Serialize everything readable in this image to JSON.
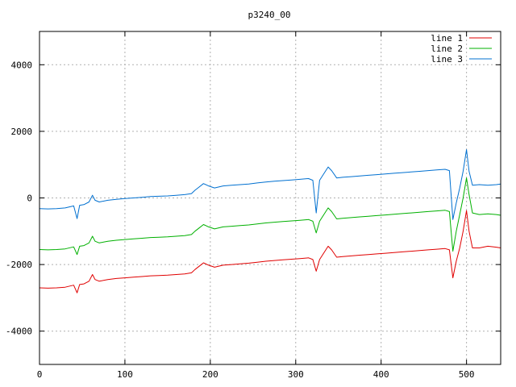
{
  "chart_data": {
    "type": "line",
    "title": "p3240_00",
    "xlabel": "",
    "ylabel": "",
    "xlim": [
      0,
      540
    ],
    "ylim": [
      -5000,
      5000
    ],
    "xticks": [
      0,
      100,
      200,
      300,
      400,
      500
    ],
    "yticks": [
      -4000,
      -2000,
      0,
      2000,
      4000
    ],
    "grid": true,
    "legend_position": "top-right",
    "series": [
      {
        "name": "line 1",
        "color": "#e00000",
        "points": [
          [
            0,
            -2700
          ],
          [
            10,
            -2710
          ],
          [
            20,
            -2700
          ],
          [
            30,
            -2680
          ],
          [
            40,
            -2620
          ],
          [
            44,
            -2850
          ],
          [
            47,
            -2600
          ],
          [
            52,
            -2580
          ],
          [
            58,
            -2500
          ],
          [
            62,
            -2300
          ],
          [
            65,
            -2450
          ],
          [
            70,
            -2500
          ],
          [
            80,
            -2450
          ],
          [
            90,
            -2420
          ],
          [
            100,
            -2400
          ],
          [
            110,
            -2380
          ],
          [
            120,
            -2360
          ],
          [
            130,
            -2340
          ],
          [
            140,
            -2330
          ],
          [
            150,
            -2320
          ],
          [
            160,
            -2300
          ],
          [
            170,
            -2280
          ],
          [
            178,
            -2250
          ],
          [
            182,
            -2150
          ],
          [
            187,
            -2050
          ],
          [
            192,
            -1950
          ],
          [
            198,
            -2020
          ],
          [
            205,
            -2080
          ],
          [
            215,
            -2020
          ],
          [
            225,
            -2000
          ],
          [
            235,
            -1980
          ],
          [
            245,
            -1960
          ],
          [
            255,
            -1930
          ],
          [
            265,
            -1900
          ],
          [
            275,
            -1880
          ],
          [
            285,
            -1860
          ],
          [
            295,
            -1840
          ],
          [
            305,
            -1820
          ],
          [
            315,
            -1800
          ],
          [
            320,
            -1850
          ],
          [
            324,
            -2200
          ],
          [
            328,
            -1850
          ],
          [
            333,
            -1650
          ],
          [
            338,
            -1450
          ],
          [
            342,
            -1560
          ],
          [
            348,
            -1780
          ],
          [
            355,
            -1760
          ],
          [
            365,
            -1740
          ],
          [
            375,
            -1720
          ],
          [
            385,
            -1700
          ],
          [
            395,
            -1680
          ],
          [
            405,
            -1660
          ],
          [
            415,
            -1640
          ],
          [
            425,
            -1620
          ],
          [
            435,
            -1600
          ],
          [
            445,
            -1580
          ],
          [
            455,
            -1560
          ],
          [
            465,
            -1540
          ],
          [
            475,
            -1520
          ],
          [
            480,
            -1560
          ],
          [
            484,
            -2400
          ],
          [
            488,
            -1900
          ],
          [
            492,
            -1500
          ],
          [
            496,
            -1000
          ],
          [
            500,
            -380
          ],
          [
            503,
            -1000
          ],
          [
            507,
            -1500
          ],
          [
            515,
            -1500
          ],
          [
            525,
            -1450
          ],
          [
            535,
            -1480
          ],
          [
            540,
            -1500
          ]
        ]
      },
      {
        "name": "line 2",
        "color": "#00b000",
        "points": [
          [
            0,
            -1550
          ],
          [
            10,
            -1560
          ],
          [
            20,
            -1550
          ],
          [
            30,
            -1530
          ],
          [
            40,
            -1470
          ],
          [
            44,
            -1700
          ],
          [
            47,
            -1450
          ],
          [
            52,
            -1430
          ],
          [
            58,
            -1350
          ],
          [
            62,
            -1150
          ],
          [
            65,
            -1300
          ],
          [
            70,
            -1350
          ],
          [
            80,
            -1300
          ],
          [
            90,
            -1270
          ],
          [
            100,
            -1250
          ],
          [
            110,
            -1230
          ],
          [
            120,
            -1210
          ],
          [
            130,
            -1190
          ],
          [
            140,
            -1180
          ],
          [
            150,
            -1170
          ],
          [
            160,
            -1150
          ],
          [
            170,
            -1130
          ],
          [
            178,
            -1100
          ],
          [
            182,
            -1000
          ],
          [
            187,
            -900
          ],
          [
            192,
            -800
          ],
          [
            198,
            -870
          ],
          [
            205,
            -930
          ],
          [
            215,
            -870
          ],
          [
            225,
            -850
          ],
          [
            235,
            -830
          ],
          [
            245,
            -810
          ],
          [
            255,
            -780
          ],
          [
            265,
            -750
          ],
          [
            275,
            -730
          ],
          [
            285,
            -710
          ],
          [
            295,
            -690
          ],
          [
            305,
            -670
          ],
          [
            315,
            -650
          ],
          [
            320,
            -700
          ],
          [
            324,
            -1050
          ],
          [
            328,
            -700
          ],
          [
            333,
            -500
          ],
          [
            338,
            -300
          ],
          [
            342,
            -410
          ],
          [
            348,
            -630
          ],
          [
            355,
            -610
          ],
          [
            365,
            -590
          ],
          [
            375,
            -570
          ],
          [
            385,
            -550
          ],
          [
            395,
            -530
          ],
          [
            405,
            -510
          ],
          [
            415,
            -490
          ],
          [
            425,
            -470
          ],
          [
            435,
            -450
          ],
          [
            445,
            -430
          ],
          [
            455,
            -410
          ],
          [
            465,
            -390
          ],
          [
            475,
            -370
          ],
          [
            480,
            -410
          ],
          [
            484,
            -1600
          ],
          [
            488,
            -1000
          ],
          [
            492,
            -500
          ],
          [
            496,
            0
          ],
          [
            500,
            600
          ],
          [
            503,
            100
          ],
          [
            507,
            -450
          ],
          [
            515,
            -500
          ],
          [
            525,
            -480
          ],
          [
            535,
            -500
          ],
          [
            540,
            -520
          ]
        ]
      },
      {
        "name": "line 3",
        "color": "#0070d0",
        "points": [
          [
            0,
            -320
          ],
          [
            10,
            -330
          ],
          [
            20,
            -320
          ],
          [
            30,
            -300
          ],
          [
            40,
            -240
          ],
          [
            44,
            -620
          ],
          [
            47,
            -220
          ],
          [
            52,
            -200
          ],
          [
            58,
            -120
          ],
          [
            62,
            80
          ],
          [
            65,
            -70
          ],
          [
            70,
            -120
          ],
          [
            80,
            -70
          ],
          [
            90,
            -40
          ],
          [
            100,
            -20
          ],
          [
            110,
            0
          ],
          [
            120,
            20
          ],
          [
            130,
            40
          ],
          [
            140,
            50
          ],
          [
            150,
            60
          ],
          [
            160,
            80
          ],
          [
            170,
            100
          ],
          [
            178,
            130
          ],
          [
            182,
            230
          ],
          [
            187,
            330
          ],
          [
            192,
            430
          ],
          [
            198,
            360
          ],
          [
            205,
            300
          ],
          [
            215,
            360
          ],
          [
            225,
            380
          ],
          [
            235,
            400
          ],
          [
            245,
            420
          ],
          [
            255,
            450
          ],
          [
            265,
            480
          ],
          [
            275,
            500
          ],
          [
            285,
            520
          ],
          [
            295,
            540
          ],
          [
            305,
            560
          ],
          [
            315,
            580
          ],
          [
            320,
            530
          ],
          [
            324,
            -450
          ],
          [
            328,
            530
          ],
          [
            333,
            730
          ],
          [
            338,
            930
          ],
          [
            342,
            820
          ],
          [
            348,
            600
          ],
          [
            355,
            620
          ],
          [
            365,
            640
          ],
          [
            375,
            660
          ],
          [
            385,
            680
          ],
          [
            395,
            700
          ],
          [
            405,
            720
          ],
          [
            415,
            740
          ],
          [
            425,
            760
          ],
          [
            435,
            780
          ],
          [
            445,
            800
          ],
          [
            455,
            820
          ],
          [
            465,
            840
          ],
          [
            475,
            860
          ],
          [
            480,
            820
          ],
          [
            484,
            -650
          ],
          [
            488,
            -150
          ],
          [
            492,
            300
          ],
          [
            496,
            800
          ],
          [
            500,
            1450
          ],
          [
            503,
            800
          ],
          [
            507,
            380
          ],
          [
            515,
            400
          ],
          [
            525,
            380
          ],
          [
            535,
            400
          ],
          [
            540,
            420
          ]
        ]
      }
    ]
  }
}
